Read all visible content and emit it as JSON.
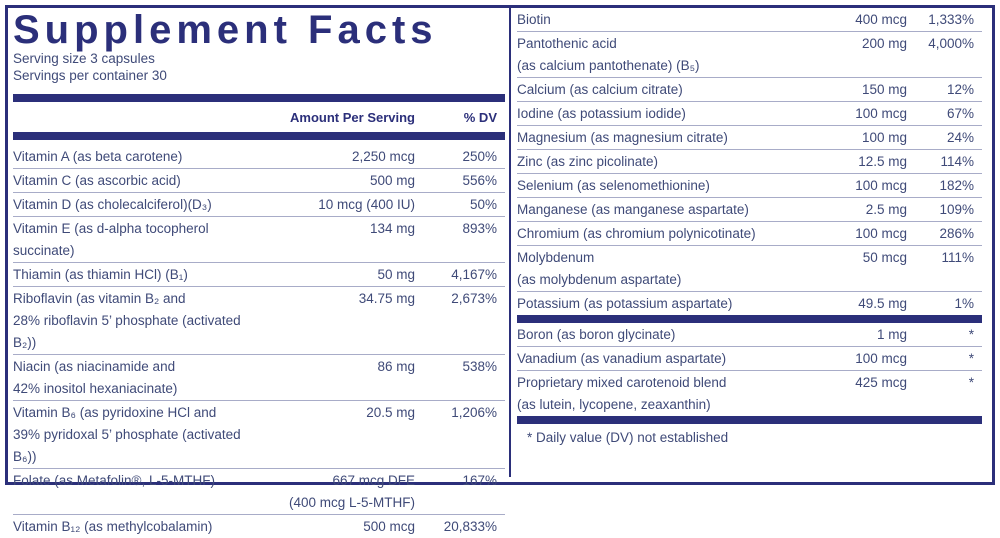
{
  "title": "Supplement Facts",
  "serving_size": "Serving size  3 capsules",
  "servings_per_container": "Servings per container  30",
  "header": {
    "amount": "Amount Per Serving",
    "dv": "% DV"
  },
  "left_rows": [
    {
      "name": "Vitamin A (as beta carotene)",
      "amount": "2,250 mcg",
      "dv": "250%"
    },
    {
      "name": "Vitamin C (as ascorbic acid)",
      "amount": "500 mg",
      "dv": "556%"
    },
    {
      "name": "Vitamin D (as cholecalciferol)(D₃)",
      "amount": "10 mcg (400 IU)",
      "dv": "50%"
    },
    {
      "name": "Vitamin E (as d-alpha tocopherol succinate)",
      "amount": "134 mg",
      "dv": "893%"
    },
    {
      "name": "Thiamin (as thiamin HCl) (B₁)",
      "amount": "50 mg",
      "dv": "4,167%"
    },
    {
      "name": "Riboflavin (as vitamin B₂ and",
      "name2": "28% riboflavin 5’ phosphate (activated B₂))",
      "amount": "34.75 mg",
      "dv": "2,673%"
    },
    {
      "name": "Niacin (as niacinamide and",
      "name2": "42% inositol hexaniacinate)",
      "amount": "86 mg",
      "dv": "538%"
    },
    {
      "name": "Vitamin B₆ (as pyridoxine HCl and",
      "name2": "39% pyridoxal 5’ phosphate (activated B₆))",
      "amount": "20.5 mg",
      "dv": "1,206%"
    },
    {
      "name": "Folate (as Metafolin®, L-5-MTHF)",
      "amount": "667 mcg DFE",
      "amount2": "(400 mcg L-5-MTHF)",
      "dv": "167%"
    },
    {
      "name": "Vitamin B₁₂ (as methylcobalamin)",
      "amount": "500 mcg",
      "dv": "20,833%"
    }
  ],
  "right_rows": [
    {
      "name": "Biotin",
      "amount": "400 mcg",
      "dv": "1,333%"
    },
    {
      "name": "Pantothenic acid",
      "name2": "(as calcium pantothenate) (B₅)",
      "amount": "200 mg",
      "dv": "4,000%"
    },
    {
      "name": "Calcium (as calcium citrate)",
      "amount": "150 mg",
      "dv": "12%"
    },
    {
      "name": "Iodine (as potassium iodide)",
      "amount": "100 mcg",
      "dv": "67%"
    },
    {
      "name": "Magnesium (as magnesium citrate)",
      "amount": "100 mg",
      "dv": "24%"
    },
    {
      "name": "Zinc (as zinc picolinate)",
      "amount": "12.5 mg",
      "dv": "114%"
    },
    {
      "name": "Selenium (as selenomethionine)",
      "amount": "100 mcg",
      "dv": "182%"
    },
    {
      "name": "Manganese (as manganese aspartate)",
      "amount": "2.5 mg",
      "dv": "109%"
    },
    {
      "name": "Chromium (as chromium polynicotinate)",
      "amount": "100 mcg",
      "dv": "286%"
    },
    {
      "name": "Molybdenum",
      "name2": "(as molybdenum aspartate)",
      "amount": "50 mcg",
      "dv": "111%"
    },
    {
      "name": "Potassium (as potassium aspartate)",
      "amount": "49.5 mg",
      "dv": "1%"
    }
  ],
  "right_rows_nodv": [
    {
      "name": "Boron (as boron glycinate)",
      "amount": "1 mg",
      "dv": "*"
    },
    {
      "name": "Vanadium (as vanadium aspartate)",
      "amount": "100 mcg",
      "dv": "*"
    },
    {
      "name": "Proprietary mixed carotenoid blend",
      "name2": "(as lutein, lycopene, zeaxanthin)",
      "amount": "425 mcg",
      "dv": "*"
    }
  ],
  "footnote": "*  Daily value (DV) not established"
}
